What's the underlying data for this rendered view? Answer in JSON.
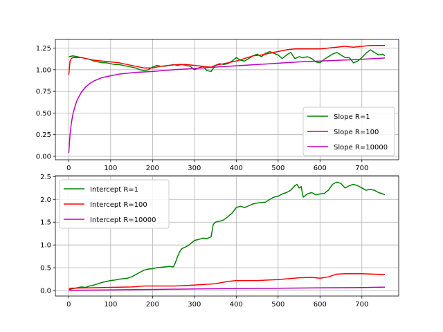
{
  "chart_data": [
    {
      "type": "line",
      "title": "",
      "xlabel": "",
      "ylabel": "",
      "xlim": [
        -32,
        788
      ],
      "ylim": [
        -0.04,
        1.35
      ],
      "xticks": [
        0,
        100,
        200,
        300,
        400,
        500,
        600,
        700
      ],
      "yticks": [
        0.0,
        0.25,
        0.5,
        0.75,
        1.0,
        1.25
      ],
      "ytick_labels": [
        "0.00",
        "0.25",
        "0.50",
        "0.75",
        "1.00",
        "1.25"
      ],
      "grid": true,
      "legend": "lower-right",
      "series": [
        {
          "name": "Slope R=1",
          "color": "#008000",
          "x": [
            0,
            10,
            20,
            30,
            40,
            50,
            60,
            70,
            80,
            90,
            100,
            110,
            120,
            130,
            140,
            150,
            160,
            170,
            180,
            190,
            200,
            210,
            220,
            230,
            240,
            250,
            260,
            270,
            280,
            290,
            300,
            310,
            320,
            330,
            340,
            350,
            360,
            370,
            380,
            390,
            400,
            410,
            420,
            430,
            440,
            450,
            460,
            470,
            480,
            490,
            500,
            510,
            520,
            530,
            540,
            550,
            560,
            570,
            580,
            590,
            600,
            610,
            620,
            630,
            640,
            650,
            660,
            670,
            680,
            690,
            700,
            710,
            720,
            730,
            740,
            750,
            755
          ],
          "values": [
            1.15,
            1.16,
            1.15,
            1.14,
            1.13,
            1.12,
            1.1,
            1.09,
            1.08,
            1.08,
            1.07,
            1.06,
            1.06,
            1.05,
            1.04,
            1.03,
            1.02,
            1.0,
            0.99,
            1.0,
            1.03,
            1.05,
            1.04,
            1.04,
            1.05,
            1.06,
            1.05,
            1.06,
            1.05,
            1.04,
            1.0,
            1.02,
            1.04,
            0.99,
            0.98,
            1.05,
            1.07,
            1.06,
            1.07,
            1.1,
            1.14,
            1.11,
            1.1,
            1.13,
            1.16,
            1.18,
            1.15,
            1.19,
            1.21,
            1.19,
            1.17,
            1.13,
            1.17,
            1.2,
            1.13,
            1.15,
            1.14,
            1.15,
            1.13,
            1.09,
            1.08,
            1.12,
            1.15,
            1.18,
            1.2,
            1.17,
            1.14,
            1.14,
            1.08,
            1.1,
            1.14,
            1.19,
            1.23,
            1.2,
            1.17,
            1.18,
            1.16
          ]
        },
        {
          "name": "Slope R=100",
          "color": "#ff0000",
          "x": [
            0,
            3,
            6,
            10,
            20,
            30,
            40,
            60,
            80,
            100,
            120,
            140,
            160,
            180,
            200,
            220,
            240,
            260,
            280,
            300,
            320,
            340,
            350,
            360,
            380,
            400,
            420,
            440,
            460,
            480,
            500,
            520,
            540,
            560,
            580,
            600,
            620,
            640,
            660,
            680,
            700,
            720,
            740,
            755
          ],
          "values": [
            0.94,
            1.1,
            1.13,
            1.14,
            1.14,
            1.14,
            1.13,
            1.11,
            1.1,
            1.09,
            1.08,
            1.06,
            1.04,
            1.02,
            1.02,
            1.04,
            1.05,
            1.06,
            1.06,
            1.05,
            1.04,
            1.03,
            1.05,
            1.06,
            1.08,
            1.1,
            1.13,
            1.16,
            1.17,
            1.19,
            1.21,
            1.23,
            1.24,
            1.24,
            1.24,
            1.24,
            1.25,
            1.26,
            1.27,
            1.26,
            1.27,
            1.28,
            1.28,
            1.28
          ]
        },
        {
          "name": "Slope R=10000",
          "color": "#bf00bf",
          "x": [
            0,
            3,
            6,
            10,
            15,
            20,
            30,
            40,
            50,
            60,
            70,
            80,
            100,
            120,
            140,
            160,
            180,
            200,
            250,
            300,
            350,
            400,
            450,
            500,
            550,
            600,
            650,
            700,
            755
          ],
          "values": [
            0.04,
            0.25,
            0.38,
            0.49,
            0.58,
            0.65,
            0.74,
            0.8,
            0.84,
            0.87,
            0.89,
            0.91,
            0.93,
            0.95,
            0.96,
            0.97,
            0.975,
            0.98,
            1.0,
            1.015,
            1.03,
            1.045,
            1.06,
            1.075,
            1.09,
            1.1,
            1.11,
            1.12,
            1.135
          ]
        }
      ]
    },
    {
      "type": "line",
      "title": "",
      "xlabel": "",
      "ylabel": "",
      "xlim": [
        -32,
        788
      ],
      "ylim": [
        -0.12,
        2.52
      ],
      "xticks": [
        0,
        100,
        200,
        300,
        400,
        500,
        600,
        700
      ],
      "yticks": [
        0.0,
        0.5,
        1.0,
        1.5,
        2.0,
        2.5
      ],
      "ytick_labels": [
        "0.0",
        "0.5",
        "1.0",
        "1.5",
        "2.0",
        "2.5"
      ],
      "grid": true,
      "legend": "upper-left",
      "series": [
        {
          "name": "Intercept R=1",
          "color": "#008000",
          "x": [
            0,
            10,
            20,
            30,
            40,
            50,
            60,
            70,
            80,
            90,
            100,
            110,
            120,
            130,
            140,
            150,
            160,
            170,
            180,
            190,
            200,
            210,
            220,
            230,
            240,
            250,
            255,
            260,
            265,
            270,
            280,
            290,
            300,
            310,
            320,
            330,
            340,
            345,
            350,
            360,
            370,
            380,
            390,
            400,
            410,
            420,
            430,
            440,
            450,
            460,
            470,
            480,
            490,
            500,
            510,
            520,
            530,
            540,
            545,
            550,
            555,
            560,
            570,
            580,
            590,
            600,
            610,
            620,
            630,
            640,
            650,
            660,
            670,
            680,
            690,
            700,
            710,
            720,
            730,
            740,
            750,
            755
          ],
          "values": [
            0.02,
            0.04,
            0.06,
            0.08,
            0.07,
            0.1,
            0.12,
            0.15,
            0.18,
            0.2,
            0.22,
            0.23,
            0.25,
            0.26,
            0.27,
            0.3,
            0.35,
            0.4,
            0.45,
            0.47,
            0.48,
            0.5,
            0.51,
            0.52,
            0.53,
            0.52,
            0.62,
            0.75,
            0.85,
            0.92,
            0.96,
            1.02,
            1.1,
            1.12,
            1.15,
            1.14,
            1.18,
            1.45,
            1.5,
            1.52,
            1.55,
            1.62,
            1.7,
            1.82,
            1.85,
            1.82,
            1.86,
            1.9,
            1.92,
            1.93,
            1.94,
            2.0,
            2.05,
            2.07,
            2.12,
            2.15,
            2.2,
            2.3,
            2.33,
            2.25,
            2.28,
            2.05,
            2.12,
            2.15,
            2.1,
            2.12,
            2.13,
            2.2,
            2.33,
            2.38,
            2.35,
            2.25,
            2.3,
            2.33,
            2.3,
            2.25,
            2.2,
            2.22,
            2.2,
            2.15,
            2.12,
            2.1
          ]
        },
        {
          "name": "Intercept R=100",
          "color": "#ff0000",
          "x": [
            0,
            50,
            100,
            150,
            180,
            200,
            250,
            280,
            300,
            350,
            380,
            400,
            450,
            500,
            550,
            580,
            600,
            620,
            640,
            660,
            700,
            755
          ],
          "values": [
            0.05,
            0.06,
            0.07,
            0.08,
            0.1,
            0.1,
            0.1,
            0.11,
            0.12,
            0.15,
            0.2,
            0.22,
            0.22,
            0.24,
            0.28,
            0.29,
            0.27,
            0.3,
            0.36,
            0.37,
            0.37,
            0.35
          ]
        },
        {
          "name": "Intercept R=10000",
          "color": "#bf00bf",
          "x": [
            0,
            100,
            200,
            300,
            400,
            500,
            600,
            700,
            755
          ],
          "values": [
            0.005,
            0.015,
            0.025,
            0.035,
            0.045,
            0.05,
            0.06,
            0.065,
            0.075
          ]
        }
      ]
    }
  ]
}
